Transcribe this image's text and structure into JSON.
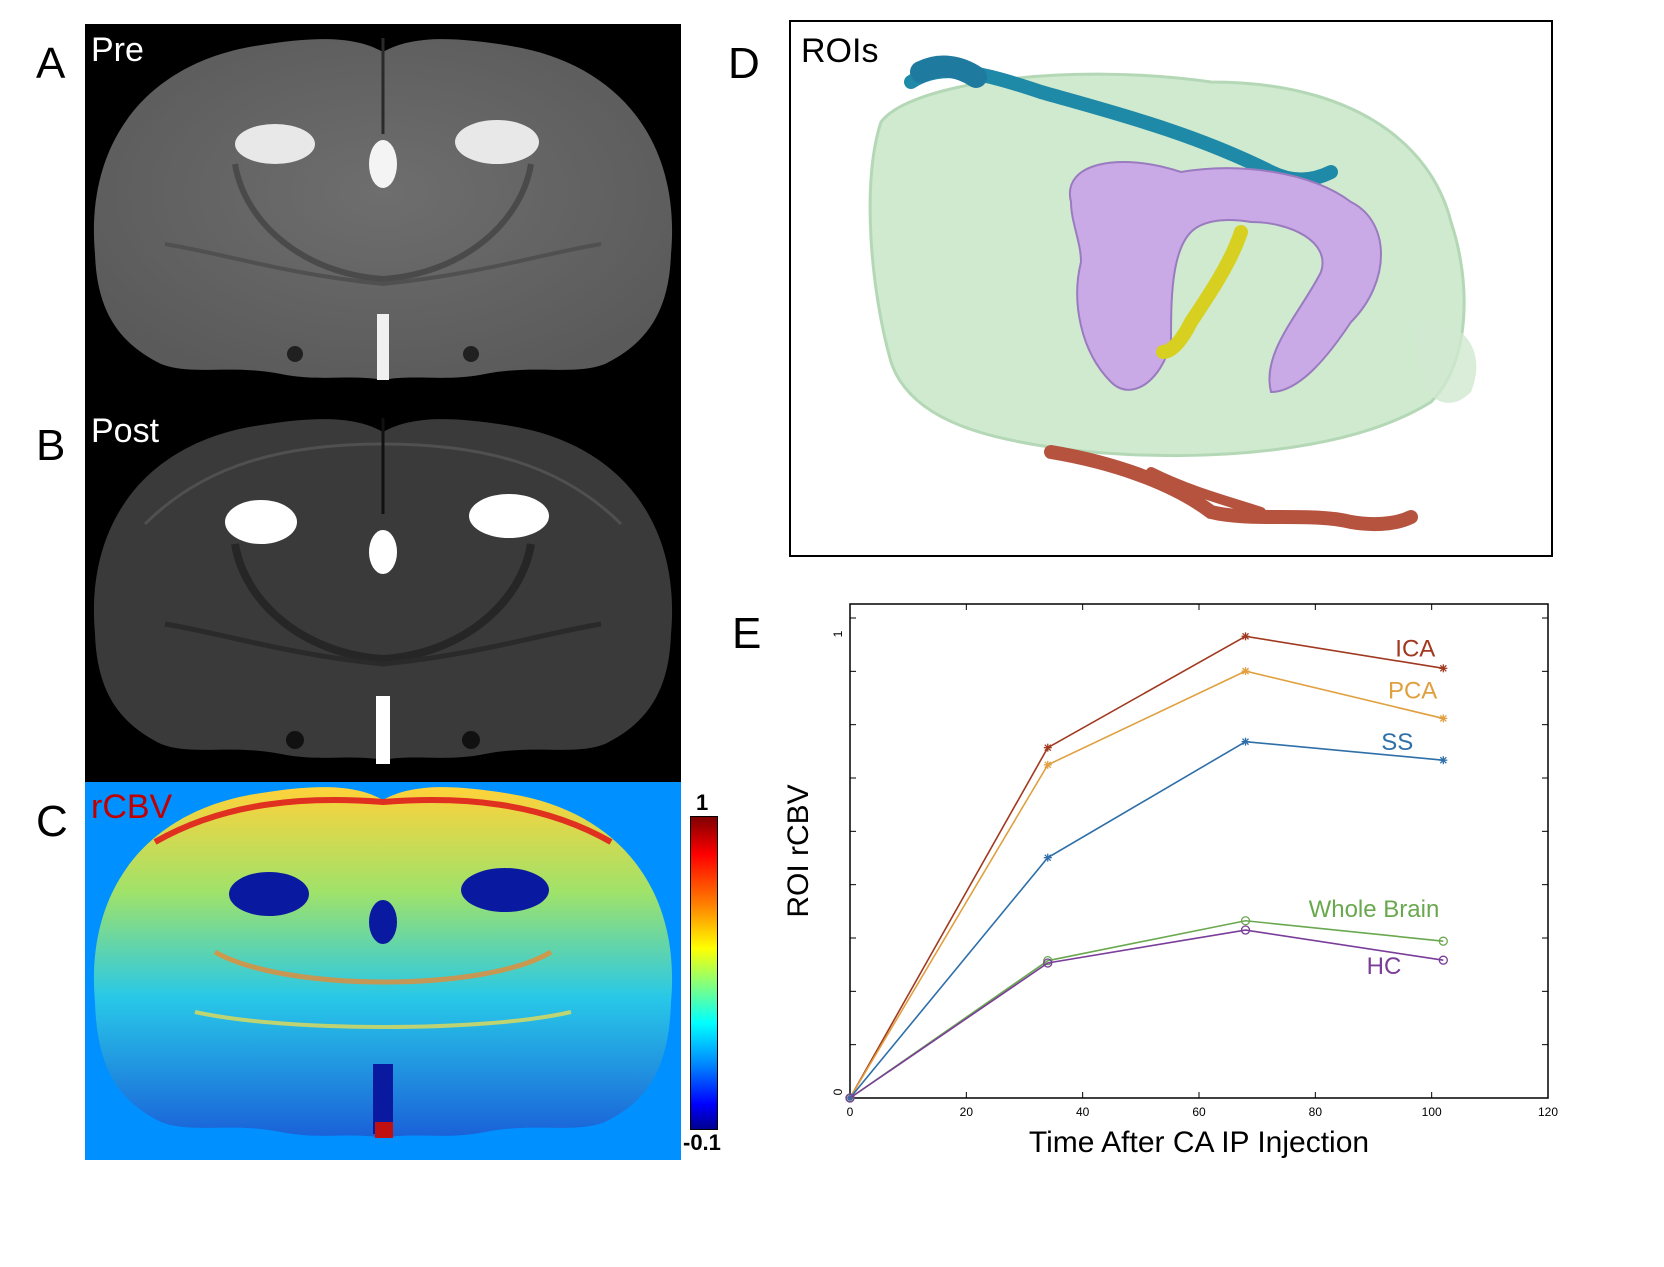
{
  "panels": {
    "A": {
      "letter": "A",
      "label": "Pre"
    },
    "B": {
      "letter": "B",
      "label": "Post"
    },
    "C": {
      "letter": "C",
      "label": "rCBV",
      "colorbar": {
        "max_label": "1",
        "min_label": "-0.1"
      }
    },
    "D": {
      "letter": "D",
      "label": "ROIs"
    },
    "E": {
      "letter": "E"
    }
  },
  "colors": {
    "ICA": "#a0391f",
    "PCA": "#e0a040",
    "SS": "#2e6fa8",
    "Whole Brain": "#6aa84f",
    "HC": "#7a3d9a",
    "rcbv_label": "#c00000",
    "rcbv_background": "#0090ff"
  },
  "chart_data": {
    "type": "line",
    "xlabel": "Time After CA IP Injection",
    "ylabel": "ROI rCBV",
    "xlim": [
      0,
      120
    ],
    "ylim": [
      0,
      1
    ],
    "x_ticks": [
      0,
      20,
      40,
      60,
      80,
      100,
      120
    ],
    "y_tick_labels": [
      "0",
      "1"
    ],
    "series": [
      {
        "name": "ICA",
        "marker": "star",
        "x": [
          0,
          34,
          68,
          102
        ],
        "y": [
          0,
          0.755,
          0.995,
          0.926
        ]
      },
      {
        "name": "PCA",
        "marker": "star",
        "x": [
          0,
          34,
          68,
          102
        ],
        "y": [
          0,
          0.718,
          0.92,
          0.818
        ]
      },
      {
        "name": "SS",
        "marker": "star",
        "x": [
          0,
          34,
          68,
          102
        ],
        "y": [
          0,
          0.518,
          0.768,
          0.728
        ]
      },
      {
        "name": "Whole Brain",
        "marker": "circle",
        "x": [
          0,
          34,
          68,
          102
        ],
        "y": [
          0,
          0.296,
          0.382,
          0.338
        ]
      },
      {
        "name": "HC",
        "marker": "circle",
        "x": [
          0,
          34,
          68,
          102
        ],
        "y": [
          0,
          0.291,
          0.362,
          0.297
        ]
      }
    ]
  }
}
